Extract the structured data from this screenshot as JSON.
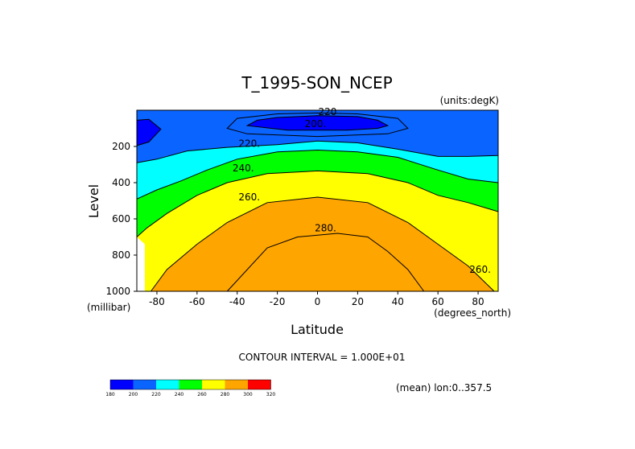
{
  "chart_data": {
    "type": "contour",
    "title": "T_1995-SON_NCEP",
    "units_label": "(units:degK)",
    "xlabel": "Latitude",
    "ylabel": "Level",
    "x_unit_label": "(degrees_north)",
    "y_unit_label": "(millibar)",
    "xlim": [
      -90,
      90
    ],
    "ylim": [
      1000,
      0
    ],
    "x_ticks": [
      -80,
      -60,
      -40,
      -20,
      0,
      20,
      40,
      60,
      80
    ],
    "y_ticks": [
      200,
      400,
      600,
      800,
      1000
    ],
    "contour_interval_text": "CONTOUR INTERVAL = 1.000E+01",
    "mean_text": "(mean) lon:0..357.5",
    "contour_labels": [
      {
        "text": "220",
        "x": 5,
        "y": 8
      },
      {
        "text": "200.",
        "x": -1,
        "y": 75
      },
      {
        "text": "220.",
        "x": -34,
        "y": 185
      },
      {
        "text": "240.",
        "x": -37,
        "y": 320
      },
      {
        "text": "260.",
        "x": -34,
        "y": 480
      },
      {
        "text": "280.",
        "x": 4,
        "y": 650
      },
      {
        "text": "260.",
        "x": 81,
        "y": 880
      }
    ],
    "fill_boundaries": [
      {
        "level": 200,
        "upper": [
          [
            -90,
            55
          ],
          [
            -84,
            50
          ],
          [
            -78,
            105
          ],
          [
            -84,
            175
          ],
          [
            -90,
            195
          ]
        ],
        "upper2": [
          [
            -35,
            85
          ],
          [
            -30,
            55
          ],
          [
            -20,
            40
          ],
          [
            0,
            30
          ],
          [
            20,
            35
          ],
          [
            30,
            55
          ],
          [
            35,
            85
          ],
          [
            30,
            100
          ],
          [
            15,
            110
          ],
          [
            -15,
            110
          ]
        ]
      },
      {
        "level": 220,
        "points": [
          [
            -90,
            290
          ],
          [
            -80,
            270
          ],
          [
            -65,
            225
          ],
          [
            -45,
            205
          ],
          [
            -20,
            190
          ],
          [
            0,
            170
          ],
          [
            20,
            180
          ],
          [
            40,
            215
          ],
          [
            60,
            255
          ],
          [
            75,
            255
          ],
          [
            90,
            250
          ]
        ]
      },
      {
        "level": 240,
        "points": [
          [
            -90,
            490
          ],
          [
            -80,
            440
          ],
          [
            -68,
            390
          ],
          [
            -55,
            330
          ],
          [
            -40,
            270
          ],
          [
            -20,
            230
          ],
          [
            0,
            220
          ],
          [
            20,
            230
          ],
          [
            40,
            260
          ],
          [
            60,
            330
          ],
          [
            75,
            380
          ],
          [
            90,
            400
          ]
        ]
      },
      {
        "level": 260,
        "points": [
          [
            -90,
            700
          ],
          [
            -85,
            650
          ],
          [
            -75,
            570
          ],
          [
            -60,
            470
          ],
          [
            -45,
            400
          ],
          [
            -25,
            350
          ],
          [
            0,
            335
          ],
          [
            25,
            350
          ],
          [
            45,
            400
          ],
          [
            60,
            470
          ],
          [
            75,
            510
          ],
          [
            90,
            560
          ]
        ]
      },
      {
        "level": 280,
        "points": [
          [
            -83,
            1000
          ],
          [
            -75,
            880
          ],
          [
            -60,
            740
          ],
          [
            -45,
            620
          ],
          [
            -25,
            510
          ],
          [
            0,
            480
          ],
          [
            25,
            510
          ],
          [
            45,
            620
          ],
          [
            60,
            740
          ],
          [
            75,
            860
          ],
          [
            88,
            1000
          ]
        ]
      },
      {
        "level": 290,
        "points": [
          [
            -45,
            1000
          ],
          [
            -35,
            880
          ],
          [
            -25,
            760
          ],
          [
            -10,
            700
          ],
          [
            10,
            680
          ],
          [
            25,
            700
          ],
          [
            35,
            780
          ],
          [
            45,
            880
          ],
          [
            53,
            1000
          ]
        ]
      }
    ],
    "colorbar": {
      "colors": [
        "#0000ff",
        "#0a64ff",
        "#00ffff",
        "#00ff00",
        "#ffff00",
        "#ffa500",
        "#ff0000"
      ],
      "labels": [
        "180",
        "200",
        "220",
        "240",
        "260",
        "280",
        "300",
        "320"
      ]
    }
  }
}
